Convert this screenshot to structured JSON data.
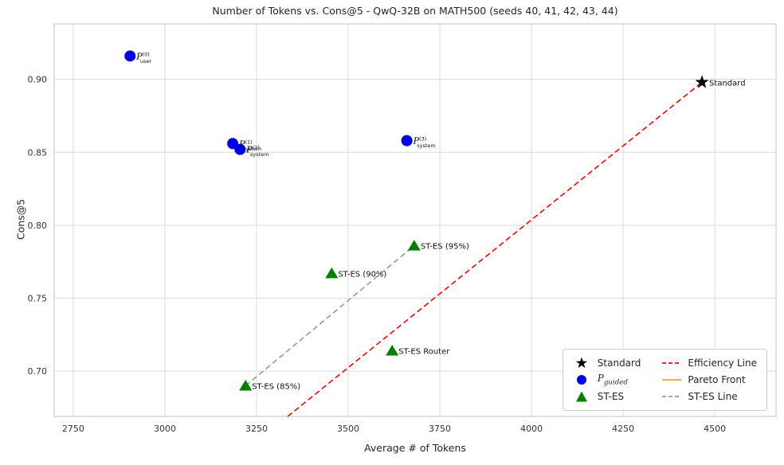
{
  "chart_data": {
    "type": "scatter",
    "title": "Number of Tokens vs. Cons@5 - QwQ-32B on MATH500 (seeds 40, 41, 42, 43, 44)",
    "xlabel": "Average # of Tokens",
    "ylabel": "Cons@5",
    "xlim": [
      2698,
      4667
    ],
    "ylim": [
      0.669,
      0.938
    ],
    "xticks": [
      2750,
      3000,
      3250,
      3500,
      3750,
      4000,
      4250,
      4500
    ],
    "yticks": [
      0.7,
      0.75,
      0.8,
      0.85,
      0.9
    ],
    "grid": true,
    "legend_position": "lower right",
    "style": {
      "grid_color": "#dcdcdc",
      "spine_color": "#cccccc",
      "background": "#ffffff"
    },
    "series": [
      {
        "name": "Standard",
        "marker": "star",
        "color": "#000000",
        "points": [
          {
            "x": 4465,
            "y": 0.898,
            "label": "Standard"
          }
        ]
      },
      {
        "name": "P_guided",
        "marker": "circle",
        "color": "#0000ee",
        "points": [
          {
            "x": 2905,
            "y": 0.916,
            "label": {
              "base": "P",
              "sup": "(0)",
              "sub": "user"
            }
          },
          {
            "x": 3185,
            "y": 0.856,
            "label": {
              "base": "P",
              "sup": "(1)",
              "sub": "system"
            }
          },
          {
            "x": 3205,
            "y": 0.852,
            "label": {
              "base": "P",
              "sup": "(2)",
              "sub": "system"
            }
          },
          {
            "x": 3660,
            "y": 0.858,
            "label": {
              "base": "P",
              "sup": "(3)",
              "sub": "system"
            }
          }
        ]
      },
      {
        "name": "ST-ES",
        "marker": "triangle",
        "color": "#008000",
        "points": [
          {
            "x": 3680,
            "y": 0.786,
            "label": "ST-ES (95%)"
          },
          {
            "x": 3455,
            "y": 0.767,
            "label": "ST-ES (90%)"
          },
          {
            "x": 3620,
            "y": 0.714,
            "label": "ST-ES Router"
          },
          {
            "x": 3220,
            "y": 0.69,
            "label": "ST-ES (85%)"
          }
        ]
      }
    ],
    "lines": [
      {
        "name": "Efficiency Line",
        "color": "#ff0000",
        "dash": "7,4",
        "points": [
          [
            3335,
            0.669
          ],
          [
            4465,
            0.898
          ]
        ]
      },
      {
        "name": "ST-ES Line",
        "color": "#999999",
        "dash": "7,4",
        "points": [
          [
            3220,
            0.69
          ],
          [
            3680,
            0.786
          ]
        ]
      }
    ],
    "legend": {
      "items": [
        {
          "label": "Standard",
          "marker": "star",
          "color": "#000000"
        },
        {
          "label_base": "P",
          "label_sub": "guided",
          "marker": "circle",
          "color": "#0000ee"
        },
        {
          "label": "ST-ES",
          "marker": "triangle",
          "color": "#008000"
        },
        {
          "label": "Efficiency Line",
          "marker": "dashed-line",
          "color": "#ff0000"
        },
        {
          "label": "Pareto Front",
          "marker": "line",
          "color": "#ffa500"
        },
        {
          "label": "ST-ES Line",
          "marker": "dashed-line",
          "color": "#999999"
        }
      ]
    }
  }
}
